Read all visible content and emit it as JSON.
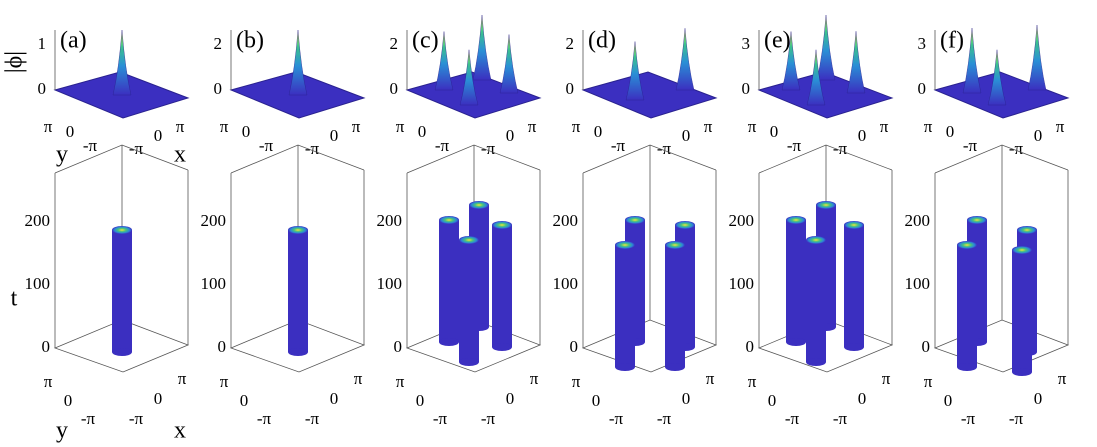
{
  "figure": {
    "z_label": "|ϕ|",
    "t_label": "t",
    "x_label": "x",
    "y_label": "y",
    "angle_ticks": [
      "π",
      "0",
      "-π"
    ],
    "t_ticks": [
      0,
      100,
      200
    ],
    "panels": [
      {
        "label": "(a)",
        "z_ticks": [
          0,
          1
        ]
      },
      {
        "label": "(b)",
        "z_ticks": [
          0,
          2
        ]
      },
      {
        "label": "(c)",
        "z_ticks": [
          0,
          2
        ]
      },
      {
        "label": "(d)",
        "z_ticks": [
          0,
          2
        ]
      },
      {
        "label": "(e)",
        "z_ticks": [
          0,
          3
        ]
      },
      {
        "label": "(f)",
        "z_ticks": [
          0,
          3
        ]
      }
    ]
  }
}
